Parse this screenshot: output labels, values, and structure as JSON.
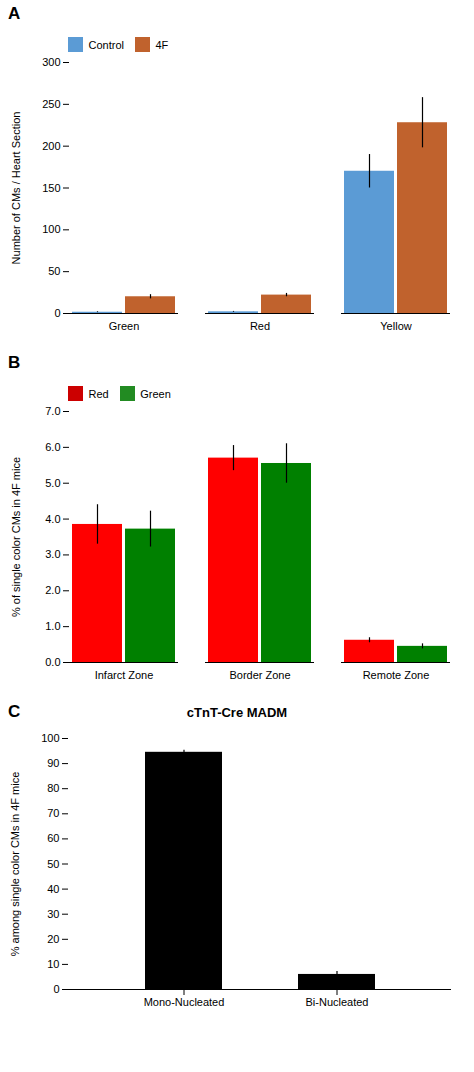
{
  "chart_data": [
    {
      "type": "bar",
      "annotations": [
        "A"
      ],
      "ylabel": "Number of CMs / Heart Section",
      "categories": [
        "Green",
        "Red",
        "Yellow"
      ],
      "series": [
        {
          "name": "Control",
          "color": "#5B9BD5",
          "values": [
            1.5,
            2.0,
            170
          ],
          "errors": [
            0.5,
            0.5,
            20
          ]
        },
        {
          "name": "4F",
          "color": "#C0622D",
          "values": [
            20,
            22,
            228
          ],
          "errors": [
            2.5,
            2.0,
            30
          ]
        }
      ],
      "ylim": [
        0,
        300
      ],
      "yticks": [
        0,
        50,
        100,
        150,
        200,
        250,
        300
      ],
      "legend": "upper left",
      "grid": false
    },
    {
      "type": "bar",
      "annotations": [
        "B"
      ],
      "ylabel": "% of single color CMs in 4F mice",
      "categories": [
        "Infarct Zone",
        "Border Zone",
        "Remote Zone"
      ],
      "series": [
        {
          "name": "Red",
          "color": "#CC0000",
          "values": [
            3.85,
            5.7,
            0.62
          ],
          "errors": [
            0.55,
            0.35,
            0.07
          ]
        },
        {
          "name": "Green",
          "color": "#228B22",
          "values": [
            3.72,
            5.55,
            0.45
          ],
          "errors": [
            0.5,
            0.55,
            0.07
          ]
        }
      ],
      "ylim": [
        0,
        7
      ],
      "yticks": [
        0,
        1,
        2,
        3,
        4,
        5,
        6,
        7
      ],
      "legend": "upper left",
      "grid": false
    },
    {
      "type": "bar",
      "title": "cTnT-Cre MADM",
      "annotations": [
        "C"
      ],
      "ylabel": "% among single color CMs in 4F mice",
      "categories": [
        "Mono-Nucleated",
        "Bi-Nucleated"
      ],
      "values": [
        94.5,
        6.0
      ],
      "errors": [
        0.8,
        1.2
      ],
      "color": "#000000",
      "ylim": [
        0,
        100
      ],
      "yticks": [
        0,
        10,
        20,
        30,
        40,
        50,
        60,
        70,
        80,
        90,
        100
      ],
      "grid": false
    }
  ]
}
